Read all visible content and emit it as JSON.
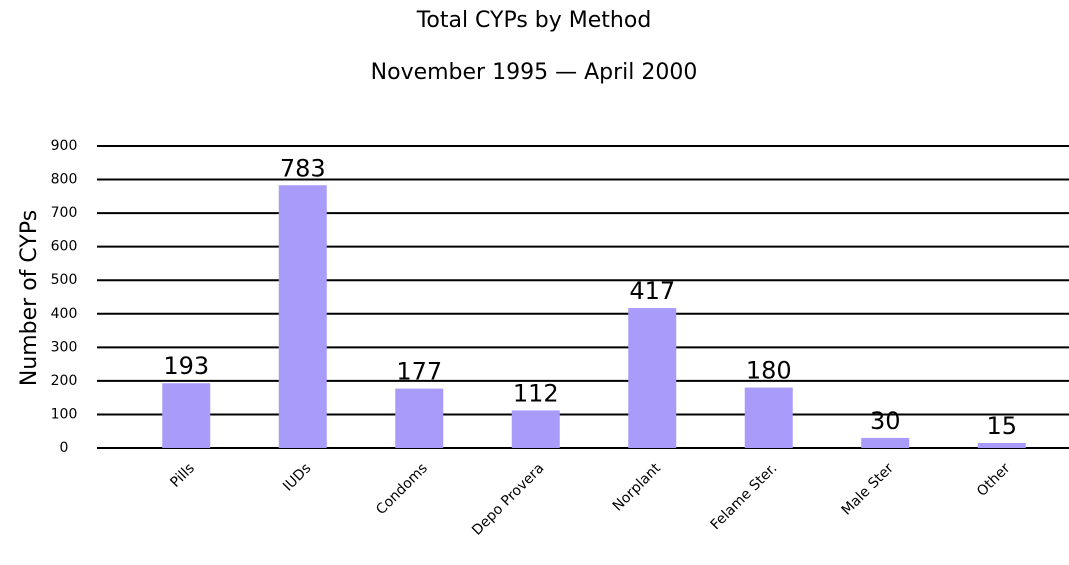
{
  "chart_data": {
    "type": "bar",
    "title": "Total CYPs by Method",
    "subtitle": "November 1995 — April 2000",
    "y_label": "Number of  CYPs",
    "categories": [
      "Pills",
      "IUDs",
      "Condoms",
      "Depo Provera",
      "Norplant",
      "Felame Ster.",
      "Male Ster",
      "Other"
    ],
    "values": [
      193,
      783,
      177,
      112,
      417,
      180,
      30,
      15
    ],
    "color": "#a99bfa",
    "ylim": [
      0,
      900
    ],
    "yticks": [
      0,
      100,
      200,
      300,
      400,
      500,
      600,
      700,
      800,
      900
    ],
    "grid": true
  }
}
